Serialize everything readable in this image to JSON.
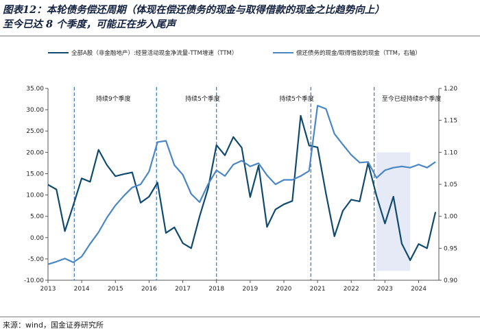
{
  "header": {
    "title_line1": "图表12：本轮债务偿还周期（体现在偿还债务的现金与取得借款的现金之比趋势向上）",
    "title_line2": "至今已达 8 个季度，可能正在步入尾声"
  },
  "footer": {
    "source": "来源：wind，国金证券研究所"
  },
  "colors": {
    "series1": "#0f4a6e",
    "series2": "#4a86c5",
    "shade": "#e5eaf6",
    "dash": "#3a78c2"
  },
  "chart_data": {
    "type": "line",
    "x_tick_labels": [
      "2013",
      "2014",
      "2015",
      "2016",
      "2017",
      "2018",
      "2019",
      "2020",
      "2021",
      "2022",
      "2023",
      "2024"
    ],
    "x_range": [
      2013.0,
      2024.6
    ],
    "y_left": {
      "range": [
        -10,
        35
      ],
      "ticks": [
        "35.00",
        "30.00",
        "25.00",
        "20.00",
        "15.00",
        "10.00",
        "5.00",
        "0.00",
        "-5.00",
        "-10.00"
      ],
      "tick_values": [
        35,
        30,
        25,
        20,
        15,
        10,
        5,
        0,
        -5,
        -10
      ]
    },
    "y_right": {
      "range": [
        0.9,
        1.2
      ],
      "ticks": [
        "1.20",
        "1.15",
        "1.10",
        "1.05",
        "1.00",
        "0.95",
        "0.90"
      ],
      "tick_values": [
        1.2,
        1.15,
        1.1,
        1.05,
        1.0,
        0.95,
        0.9
      ]
    },
    "series": [
      {
        "name": "全部A股（非金融地产）:经营活动现金净流量-TTM增速（TTM）",
        "axis": "left",
        "x": [
          2013.0,
          2013.25,
          2013.5,
          2013.75,
          2014.0,
          2014.25,
          2014.5,
          2014.75,
          2015.0,
          2015.25,
          2015.5,
          2015.75,
          2016.0,
          2016.25,
          2016.5,
          2016.75,
          2017.0,
          2017.25,
          2017.5,
          2017.75,
          2018.0,
          2018.25,
          2018.5,
          2018.75,
          2019.0,
          2019.25,
          2019.5,
          2019.75,
          2020.0,
          2020.25,
          2020.5,
          2020.75,
          2021.0,
          2021.25,
          2021.5,
          2021.75,
          2022.0,
          2022.25,
          2022.5,
          2022.75,
          2023.0,
          2023.25,
          2023.5,
          2023.75,
          2024.0,
          2024.25,
          2024.5
        ],
        "values": [
          12.4,
          11.3,
          1.5,
          7.6,
          13.9,
          13.1,
          20.6,
          17.0,
          14.4,
          14.9,
          15.3,
          8.2,
          9.6,
          12.9,
          1.1,
          2.4,
          -1.3,
          -2.5,
          5.0,
          11.5,
          21.7,
          19.3,
          23.6,
          21.1,
          9.5,
          16.9,
          2.5,
          6.6,
          7.8,
          8.6,
          28.6,
          21.6,
          21.2,
          10.3,
          0.3,
          6.3,
          8.9,
          8.5,
          17.5,
          9.8,
          3.3,
          9.6,
          -1.4,
          -5.3,
          -1.5,
          -2.5,
          6.0
        ]
      },
      {
        "name": "偿还债务的现金/取得借款的现金（TTM，右轴）",
        "axis": "right",
        "x": [
          2013.0,
          2013.25,
          2013.5,
          2013.75,
          2014.0,
          2014.25,
          2014.5,
          2014.75,
          2015.0,
          2015.25,
          2015.5,
          2015.75,
          2016.0,
          2016.25,
          2016.5,
          2016.75,
          2017.0,
          2017.25,
          2017.5,
          2017.75,
          2018.0,
          2018.25,
          2018.5,
          2018.75,
          2019.0,
          2019.25,
          2019.5,
          2019.75,
          2020.0,
          2020.25,
          2020.5,
          2020.75,
          2021.0,
          2021.25,
          2021.5,
          2021.75,
          2022.0,
          2022.25,
          2022.5,
          2022.75,
          2023.0,
          2023.25,
          2023.5,
          2023.75,
          2024.0,
          2024.25,
          2024.5
        ],
        "values": [
          0.925,
          0.929,
          0.934,
          0.928,
          0.937,
          0.957,
          0.975,
          0.998,
          1.017,
          1.032,
          1.045,
          1.05,
          1.07,
          1.116,
          1.118,
          1.08,
          1.065,
          1.035,
          1.022,
          1.05,
          1.072,
          1.063,
          1.081,
          1.087,
          1.078,
          1.083,
          1.064,
          1.05,
          1.057,
          1.057,
          1.063,
          1.071,
          1.173,
          1.168,
          1.129,
          1.112,
          1.096,
          1.084,
          1.085,
          1.06,
          1.072,
          1.076,
          1.078,
          1.076,
          1.081,
          1.076,
          1.085
        ]
      }
    ],
    "period_markers": [
      2013.78,
      2016.22,
      2018.0,
      2020.8,
      2022.68
    ],
    "shaded_region": {
      "x": [
        2022.75,
        2023.75
      ],
      "y": [
        -7.8,
        20.0
      ]
    },
    "annotations": [
      {
        "text": "持续9个季度",
        "x": 2014.94,
        "y": 32.1
      },
      {
        "text": "持续5个季度",
        "x": 2017.59,
        "y": 32.1
      },
      {
        "text": "持续5个季度",
        "x": 2020.38,
        "y": 32.1
      },
      {
        "text": "至今已经持续8个季度",
        "x": 2023.79,
        "y": 32.1
      }
    ]
  }
}
